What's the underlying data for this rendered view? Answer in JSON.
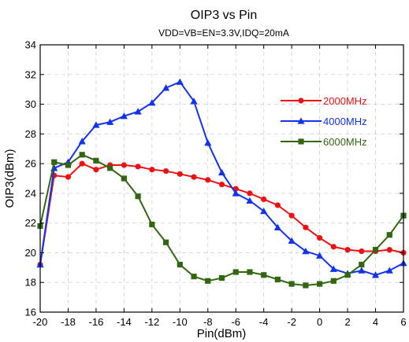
{
  "chart_data": {
    "type": "line",
    "title": "OIP3 vs Pin",
    "subtitle": "VDD=VB=EN=3.3V,IDQ=20mA",
    "xlabel": "Pin(dBm)",
    "ylabel": "OIP3(dBm)",
    "xlim": [
      -20,
      6
    ],
    "ylim": [
      16,
      34
    ],
    "xticks": [
      -20,
      -18,
      -16,
      -14,
      -12,
      -10,
      -8,
      -6,
      -4,
      -2,
      0,
      2,
      4,
      6
    ],
    "yticks": [
      16,
      18,
      20,
      22,
      24,
      26,
      28,
      30,
      32,
      34
    ],
    "grid": true,
    "legend_position": "right",
    "series": [
      {
        "name": "2000MHz",
        "color": "#ee1111",
        "marker": "circle",
        "x": [
          -20,
          -19,
          -18,
          -17,
          -16,
          -15,
          -14,
          -13,
          -12,
          -11,
          -10,
          -9,
          -8,
          -7,
          -6,
          -5,
          -4,
          -3,
          -2,
          -1,
          0,
          1,
          2,
          3,
          4,
          5,
          6
        ],
        "y": [
          19.2,
          25.2,
          25.1,
          26.0,
          25.6,
          25.9,
          25.9,
          25.8,
          25.6,
          25.5,
          25.3,
          25.1,
          24.9,
          24.6,
          24.3,
          24.0,
          23.6,
          23.2,
          22.5,
          21.7,
          21.0,
          20.4,
          20.2,
          20.1,
          20.1,
          20.2,
          20.0
        ]
      },
      {
        "name": "4000MHz",
        "color": "#1133ee",
        "marker": "triangle",
        "x": [
          -20,
          -19,
          -18,
          -17,
          -16,
          -15,
          -14,
          -13,
          -12,
          -11,
          -10,
          -9,
          -8,
          -7,
          -6,
          -5,
          -4,
          -3,
          -2,
          -1,
          0,
          1,
          2,
          3,
          4,
          5,
          6
        ],
        "y": [
          19.2,
          25.7,
          26.1,
          27.5,
          28.6,
          28.8,
          29.2,
          29.5,
          30.1,
          31.1,
          31.5,
          30.2,
          27.4,
          25.4,
          24.0,
          23.5,
          22.8,
          21.7,
          20.8,
          20.1,
          19.8,
          18.9,
          18.6,
          18.8,
          18.5,
          18.8,
          19.3
        ]
      },
      {
        "name": "6000MHz",
        "color": "#336611",
        "marker": "square",
        "x": [
          -20,
          -19,
          -18,
          -17,
          -16,
          -15,
          -14,
          -13,
          -12,
          -11,
          -10,
          -9,
          -8,
          -7,
          -6,
          -5,
          -4,
          -3,
          -2,
          -1,
          0,
          1,
          2,
          3,
          4,
          5,
          6
        ],
        "y": [
          21.8,
          26.1,
          25.9,
          26.6,
          26.2,
          25.7,
          25.0,
          23.8,
          21.9,
          20.7,
          19.2,
          18.4,
          18.1,
          18.3,
          18.7,
          18.7,
          18.5,
          18.2,
          17.9,
          17.8,
          17.9,
          18.1,
          18.5,
          19.2,
          20.2,
          21.2,
          22.5
        ]
      }
    ]
  }
}
